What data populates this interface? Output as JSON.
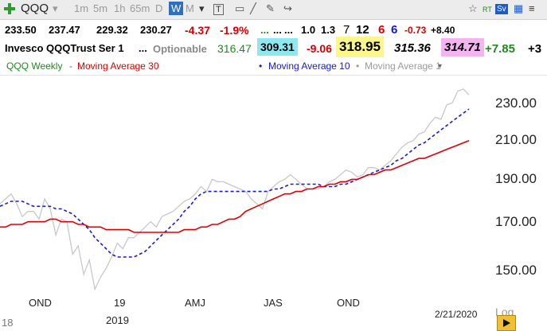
{
  "toolbar": {
    "symbol": "QQQ",
    "timeframes": [
      "1m",
      "5m",
      "1h",
      "65m",
      "D",
      "W",
      "M"
    ],
    "active_timeframe": "W"
  },
  "quote": {
    "open": "233.50",
    "high": "237.47",
    "low": "229.32",
    "close": "230.27",
    "change": "-4.37",
    "change_pct": "-1.9%",
    "dots1": "...",
    "dots2": "...",
    "dots3": "...",
    "v1": "1.0",
    "v2": "1.3",
    "v3": "7",
    "v4": "12",
    "v5": "6",
    "v6": "6",
    "v7": "-0.73",
    "v8": "+8.40"
  },
  "info": {
    "name": "Invesco QQQTrust Ser 1",
    "dots": "...",
    "optionable": "Optionable",
    "p1": "316.47",
    "p2": "309.31",
    "p3": "-9.06",
    "p4": "318.95",
    "p5": "315.36",
    "p6": "314.71",
    "p7": "+7.85",
    "p8": "+3"
  },
  "legend": {
    "weekly": "QQQ Weekly",
    "ma30": "Moving Average 30",
    "ma10": "Moving Average 10",
    "ma1": "Moving Average 1"
  },
  "colors": {
    "price": "#c8c8c8",
    "ma30": "#e00000",
    "ma10": "#1a1ad0",
    "green": "#1f8a1f",
    "red": "#d40000",
    "blue": "#1818c8"
  },
  "axes": {
    "x_labels": [
      "OND",
      "19",
      "2019",
      "AMJ",
      "JAS",
      "OND",
      "2/21/2020",
      "18",
      "Log"
    ],
    "y_ticks": [
      "230.00",
      "210.00",
      "190.00",
      "170.00",
      "150.00"
    ]
  },
  "chart_data": {
    "type": "line",
    "log_scale": true,
    "y_range": [
      147,
      240
    ],
    "y_ticks": [
      150,
      170,
      190,
      210,
      230
    ],
    "series": [
      {
        "name": "QQQ Weekly",
        "values": [
          181,
          183,
          185,
          181,
          176,
          178,
          178,
          175,
          183,
          179,
          169,
          175,
          174,
          162,
          165,
          155,
          160,
          150,
          154,
          157,
          161,
          166,
          164,
          168,
          168,
          170,
          172,
          174,
          172,
          176,
          177,
          178,
          180,
          182,
          183,
          185,
          188,
          186,
          191,
          190,
          190,
          189,
          188,
          187,
          186,
          183,
          181,
          179,
          186,
          188,
          190,
          191,
          193,
          191,
          189,
          187,
          187,
          187,
          188,
          190,
          191,
          193,
          195,
          194,
          192,
          193,
          196,
          196,
          195,
          197,
          199,
          202,
          205,
          207,
          208,
          211,
          212,
          216,
          219,
          218,
          225,
          226,
          232,
          233,
          230
        ]
      },
      {
        "name": "Moving Average 10",
        "values": [
          180,
          181,
          182,
          182,
          182,
          181,
          180,
          180,
          180,
          180,
          179,
          179,
          178,
          177,
          175,
          173,
          171,
          168,
          166,
          164,
          162,
          161,
          161,
          161,
          161,
          162,
          163,
          165,
          167,
          169,
          171,
          173,
          175,
          178,
          180,
          183,
          185,
          186,
          186,
          186,
          186,
          186,
          186,
          186,
          186,
          186,
          186,
          186,
          186,
          187,
          187,
          188,
          189,
          189,
          189,
          189,
          189,
          189,
          188,
          188,
          188,
          189,
          189,
          190,
          191,
          192,
          193,
          194,
          195,
          196,
          197,
          199,
          200,
          202,
          204,
          206,
          207,
          209,
          211,
          213,
          215,
          217,
          219,
          221,
          223
        ]
      },
      {
        "name": "Moving Average 30",
        "values": [
          172,
          172,
          173,
          173,
          173,
          174,
          174,
          174,
          174,
          175,
          175,
          174,
          174,
          174,
          173,
          173,
          172,
          172,
          172,
          171,
          171,
          171,
          171,
          171,
          170,
          170,
          170,
          170,
          170,
          170,
          170,
          170,
          170,
          171,
          171,
          171,
          172,
          172,
          173,
          173,
          174,
          175,
          175,
          176,
          178,
          179,
          180,
          181,
          182,
          183,
          184,
          185,
          185,
          186,
          186,
          187,
          187,
          188,
          188,
          189,
          189,
          190,
          190,
          191,
          191,
          192,
          193,
          193,
          194,
          195,
          195,
          196,
          197,
          198,
          199,
          200,
          200,
          201,
          202,
          203,
          204,
          205,
          206,
          207,
          208
        ]
      }
    ]
  }
}
